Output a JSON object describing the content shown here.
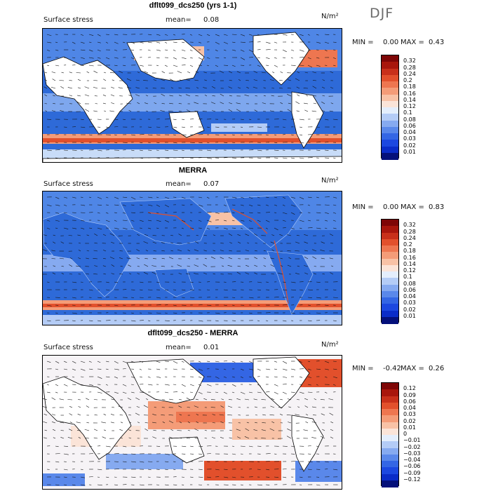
{
  "season": "DJF",
  "units": "N/m²",
  "colors": {
    "levels_abs": [
      "#04107a",
      "#0a2cc8",
      "#1c48e0",
      "#3466e4",
      "#5a88ea",
      "#86aaf0",
      "#b4ccf6",
      "#e4eefc",
      "#fbe4d8",
      "#f8c2a6",
      "#f49c78",
      "#ee7650",
      "#e2502c",
      "#c8301a",
      "#a8160c",
      "#7e0606"
    ],
    "levels_diff": [
      "#04107a",
      "#0a2cc8",
      "#1c48e0",
      "#3466e4",
      "#5a88ea",
      "#86aaf0",
      "#b4ccf6",
      "#e4eefc",
      "#fbe4d8",
      "#f8c2a6",
      "#f49c78",
      "#ee7650",
      "#e2502c",
      "#c8301a",
      "#a8160c",
      "#7e0606"
    ],
    "land": "#ffffff"
  },
  "panels": [
    {
      "title": "dflt099_dcs250 (yrs 1-1)",
      "variable": "Surface stress",
      "mean_label": "mean=",
      "mean": "0.08",
      "stats": {
        "min_label": "MIN =",
        "min": "0.00",
        "max_label": "MAX =",
        "max": "0.43"
      },
      "colorbar_ticks": [
        "0.32",
        "0.28",
        "0.24",
        "0.2",
        "0.18",
        "0.16",
        "0.14",
        "0.12",
        "0.1",
        "0.08",
        "0.06",
        "0.04",
        "0.03",
        "0.02",
        "0.01"
      ]
    },
    {
      "title": "MERRA",
      "variable": "Surface stress",
      "mean_label": "mean=",
      "mean": "0.07",
      "stats": {
        "min_label": "MIN =",
        "min": "0.00",
        "max_label": "MAX =",
        "max": "0.83"
      },
      "colorbar_ticks": [
        "0.32",
        "0.28",
        "0.24",
        "0.2",
        "0.18",
        "0.16",
        "0.14",
        "0.12",
        "0.1",
        "0.08",
        "0.06",
        "0.04",
        "0.03",
        "0.02",
        "0.01"
      ]
    },
    {
      "title": "dflt099_dcs250 - MERRA",
      "variable": "Surface stress",
      "mean_label": "mean=",
      "mean": "0.01",
      "stats": {
        "min_label": "MIN =",
        "min": "-0.42",
        "max_label": "MAX =",
        "max": "0.26"
      },
      "colorbar_ticks": [
        "0.12",
        "0.09",
        "0.06",
        "0.04",
        "0.03",
        "0.02",
        "0.01",
        "0",
        "−0.01",
        "−0.02",
        "−0.03",
        "−0.04",
        "−0.06",
        "−0.09",
        "−0.12"
      ]
    }
  ],
  "chart_data": {
    "type": "heatmap",
    "projection": "global lat-lon (cylindrical)",
    "overlay": "wind stress vectors",
    "panel_means": [
      0.08,
      0.07,
      0.01
    ],
    "panel_min": [
      0.0,
      0.0,
      -0.42
    ],
    "panel_max": [
      0.43,
      0.83,
      0.26
    ],
    "abs_levels": [
      0.01,
      0.02,
      0.03,
      0.04,
      0.06,
      0.08,
      0.1,
      0.12,
      0.14,
      0.16,
      0.18,
      0.2,
      0.24,
      0.28,
      0.32
    ],
    "diff_levels": [
      -0.12,
      -0.09,
      -0.06,
      -0.04,
      -0.03,
      -0.02,
      -0.01,
      0,
      0.01,
      0.02,
      0.03,
      0.04,
      0.06,
      0.09,
      0.12
    ]
  }
}
